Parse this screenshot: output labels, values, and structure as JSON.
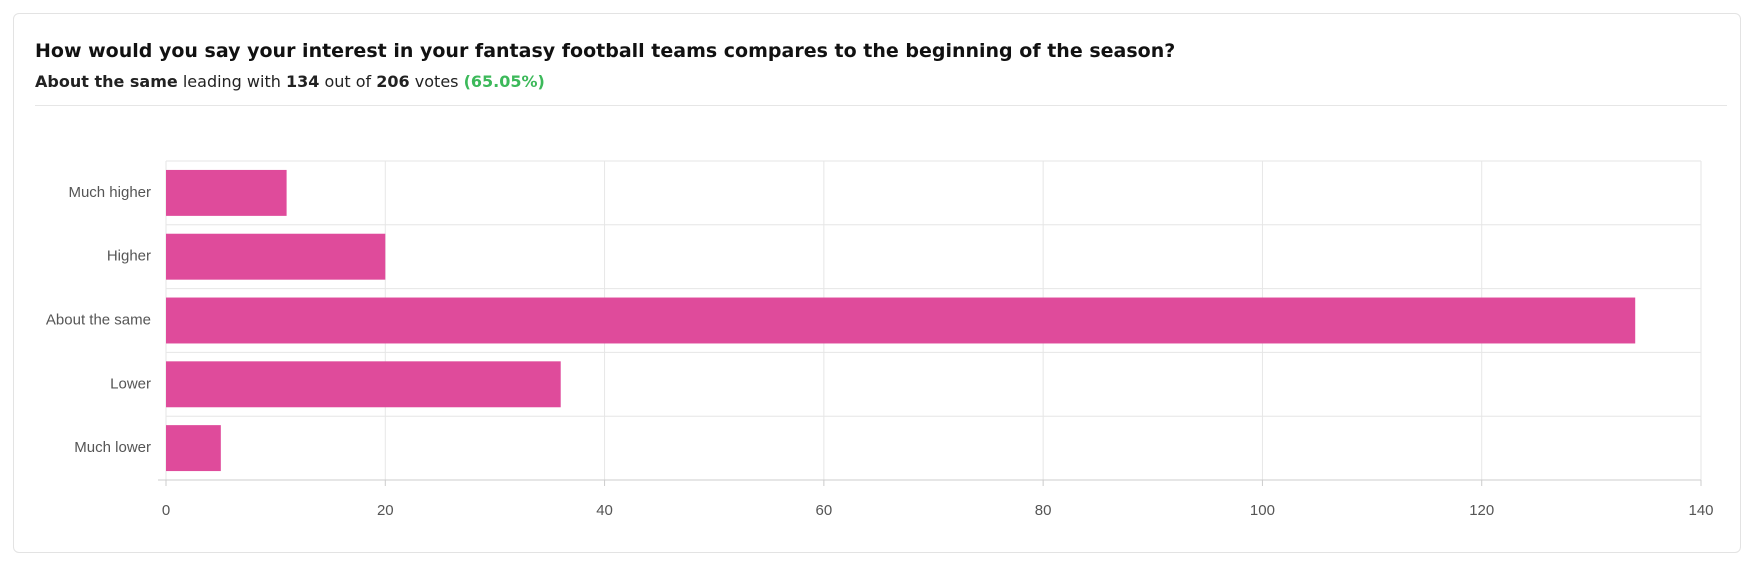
{
  "header": {
    "title": "How would you say your interest in your fantasy football teams compares to the beginning of the season?",
    "summary": {
      "leader": "About the same",
      "leading_text": "leading with",
      "leader_votes": "134",
      "out_of_text": "out of",
      "total_votes": "206",
      "votes_text": "votes",
      "percent": "(65.05%)"
    }
  },
  "chart_data": {
    "type": "hbar",
    "categories": [
      "Much higher",
      "Higher",
      "About the same",
      "Lower",
      "Much lower"
    ],
    "values": [
      11,
      20,
      134,
      36,
      5
    ],
    "color": "#df4b9b",
    "xlim": [
      0,
      140
    ],
    "xticks": [
      0,
      20,
      40,
      60,
      80,
      100,
      120,
      140
    ],
    "grid": true
  }
}
